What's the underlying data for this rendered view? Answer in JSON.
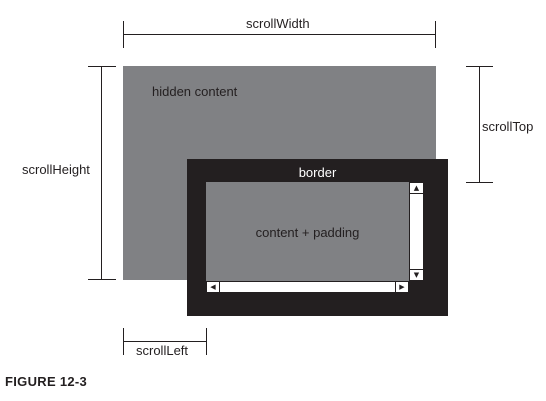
{
  "diagram": {
    "labels": {
      "scroll_width": "scrollWidth",
      "scroll_height": "scrollHeight",
      "scroll_top": "scrollTop",
      "scroll_left": "scrollLeft",
      "hidden_content": "hidden content",
      "border": "border",
      "content_padding": "content + padding"
    },
    "scrollbar_icons": {
      "up": "▲",
      "down": "▼",
      "left": "◀",
      "right": "▶"
    },
    "colors": {
      "hidden_content_fill": "#808184",
      "border_fill": "#231f20",
      "ink": "#231f20",
      "paper": "#ffffff"
    }
  },
  "caption": {
    "text": "FIGURE 12-3"
  }
}
